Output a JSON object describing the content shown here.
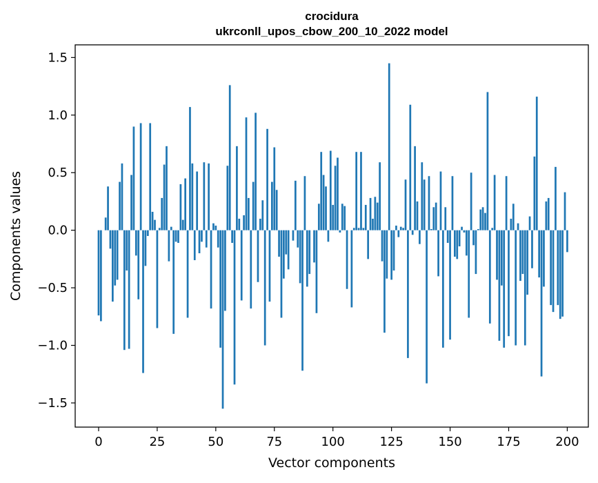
{
  "chart_data": {
    "type": "bar",
    "title": "crocidura",
    "subtitle": "ukrconll_upos_cbow_200_10_2022 model",
    "xlabel": "Vector components",
    "ylabel": "Components values",
    "xlim": [
      -10,
      209
    ],
    "ylim": [
      -1.71,
      1.61
    ],
    "xticks": [
      0,
      25,
      50,
      75,
      100,
      125,
      150,
      175,
      200
    ],
    "yticks": [
      -1.5,
      -1.0,
      -0.5,
      0.0,
      0.5,
      1.0,
      1.5
    ],
    "ytick_labels": [
      "−1.5",
      "−1.0",
      "−0.5",
      "0.0",
      "0.5",
      "1.0",
      "1.5"
    ],
    "grid": false,
    "bar_color": "#1f77b4",
    "values": [
      -0.74,
      -0.79,
      0.0,
      0.11,
      0.38,
      -0.16,
      -0.62,
      -0.48,
      -0.43,
      0.42,
      0.58,
      -1.04,
      -0.35,
      -1.03,
      0.48,
      0.9,
      -0.22,
      -0.6,
      0.93,
      -1.24,
      -0.31,
      -0.05,
      0.93,
      0.16,
      0.09,
      -0.85,
      0.02,
      0.28,
      0.57,
      0.73,
      -0.27,
      0.03,
      -0.9,
      -0.1,
      -0.11,
      0.4,
      0.09,
      0.45,
      -0.76,
      1.07,
      0.58,
      -0.26,
      0.51,
      -0.2,
      -0.1,
      0.59,
      -0.15,
      0.58,
      -0.68,
      0.06,
      0.04,
      -0.15,
      -1.02,
      -1.55,
      -0.7,
      0.56,
      1.26,
      -0.11,
      -1.34,
      0.73,
      0.1,
      -0.61,
      0.13,
      0.98,
      0.28,
      -0.68,
      0.42,
      1.02,
      -0.45,
      0.1,
      0.26,
      -1.0,
      0.88,
      -0.62,
      0.42,
      0.72,
      0.35,
      -0.23,
      -0.76,
      -0.42,
      -0.21,
      -0.34,
      0.0,
      -0.09,
      0.43,
      -0.15,
      -0.46,
      -1.22,
      0.47,
      -0.49,
      -0.38,
      0.0,
      -0.28,
      -0.72,
      0.23,
      0.68,
      0.48,
      0.38,
      -0.1,
      0.69,
      0.22,
      0.56,
      0.63,
      -0.02,
      0.23,
      0.21,
      -0.51,
      0.0,
      -0.67,
      0.02,
      0.68,
      0.02,
      0.68,
      0.02,
      0.22,
      -0.25,
      0.28,
      0.1,
      0.29,
      0.24,
      0.59,
      -0.27,
      -0.89,
      -0.42,
      1.45,
      -0.43,
      -0.35,
      0.04,
      -0.06,
      0.03,
      0.02,
      0.44,
      -1.11,
      1.09,
      -0.04,
      0.73,
      0.25,
      -0.12,
      0.59,
      0.44,
      -1.33,
      0.47,
      0.01,
      0.2,
      0.24,
      -0.4,
      0.51,
      -1.02,
      0.2,
      -0.11,
      -0.95,
      0.47,
      -0.23,
      -0.25,
      -0.14,
      0.03,
      -0.02,
      -0.22,
      -0.76,
      0.5,
      -0.13,
      -0.38,
      0.01,
      0.18,
      0.2,
      0.15,
      1.2,
      -0.81,
      0.02,
      0.48,
      -0.43,
      -0.96,
      -0.48,
      -1.02,
      0.47,
      -0.92,
      0.1,
      0.23,
      -1.0,
      0.06,
      -0.44,
      -0.38,
      -1.0,
      -0.56,
      0.12,
      -0.33,
      0.64,
      1.16,
      -0.41,
      -1.27,
      -0.49,
      0.25,
      0.28,
      -0.65,
      -0.71,
      0.55,
      -0.65,
      -0.77,
      -0.75,
      0.33,
      -0.19
    ]
  }
}
